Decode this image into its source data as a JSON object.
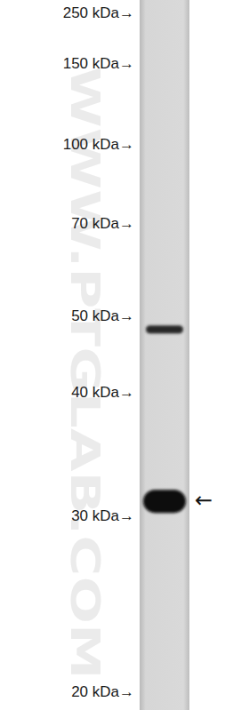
{
  "chart_data": {
    "type": "blot",
    "watermark": "WWW.PTGLAB.COM",
    "values": [
      48,
      31
    ],
    "ylim": [
      20,
      250
    ],
    "log": "y",
    "yticks": [
      {
        "value": 250,
        "label": "250 kDa→"
      },
      {
        "value": 150,
        "label": "150 kDa→"
      },
      {
        "value": 100,
        "label": "100 kDa→"
      },
      {
        "value": 70,
        "label": "70 kDa→"
      },
      {
        "value": 50,
        "label": "50 kDa→"
      },
      {
        "value": 40,
        "label": "40 kDa→"
      },
      {
        "value": 30,
        "label": "30 kDa→"
      },
      {
        "value": 20,
        "label": "20 kDa→"
      }
    ],
    "annotations": [
      {
        "y": 31,
        "text": "←"
      }
    ]
  }
}
